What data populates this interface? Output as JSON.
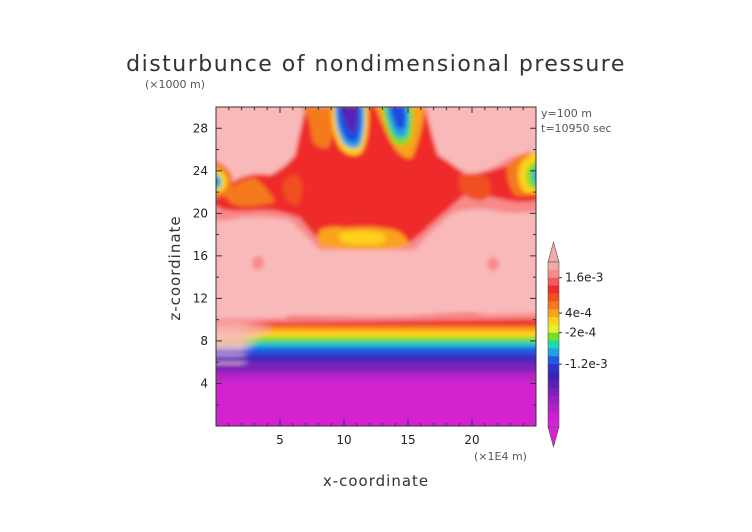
{
  "chart_data": {
    "type": "heatmap",
    "title": "disturbunce of nondimensional pressure",
    "y_unit_label": "(×1000 m)",
    "x_unit_label": "(×1E4 m)",
    "xlabel": "x-coordinate",
    "ylabel": "z-coordinate",
    "annotations": [
      "y=100 m",
      "t=10950 sec"
    ],
    "xlim": [
      0,
      25
    ],
    "ylim": [
      0,
      30
    ],
    "x_ticks": [
      5,
      10,
      15,
      20
    ],
    "y_ticks": [
      4,
      8,
      12,
      16,
      20,
      24,
      28
    ],
    "colorbar": {
      "tick_labels": [
        "1.6e-3",
        "4e-4",
        "-2e-4",
        "-1.2e-3"
      ],
      "tick_values": [
        0.0016,
        0.0004,
        -0.0002,
        -0.0012
      ],
      "colors_top_to_bottom": [
        "#f4a9a9",
        "#f88a8a",
        "#f55a5a",
        "#ee2a2a",
        "#f05020",
        "#f47a1e",
        "#f9a31c",
        "#ffd21a",
        "#e6f02a",
        "#6ee02a",
        "#20d8b0",
        "#20a0e6",
        "#1f5ae6",
        "#2a34c8",
        "#3d22b8",
        "#5a20b4",
        "#7a20b8",
        "#9a20c0",
        "#b020c8",
        "#c820d2",
        "#d822d6"
      ]
    },
    "field_description": [
      {
        "z_range": [
          0,
          6
        ],
        "value": "-1.2e-3 and below (magenta)"
      },
      {
        "z_range": [
          6,
          10
        ],
        "value": "sharp transition from blue/green/yellow to red"
      },
      {
        "z_range": [
          10,
          16
        ],
        "value": "~1.6e-3 (light pink)"
      },
      {
        "z_range": [
          16,
          30
        ],
        "value": "patches of red/orange/yellow; blue minima near x=10-14, z=27-30 and at x=0.5 and 24.5, z=23"
      }
    ]
  }
}
